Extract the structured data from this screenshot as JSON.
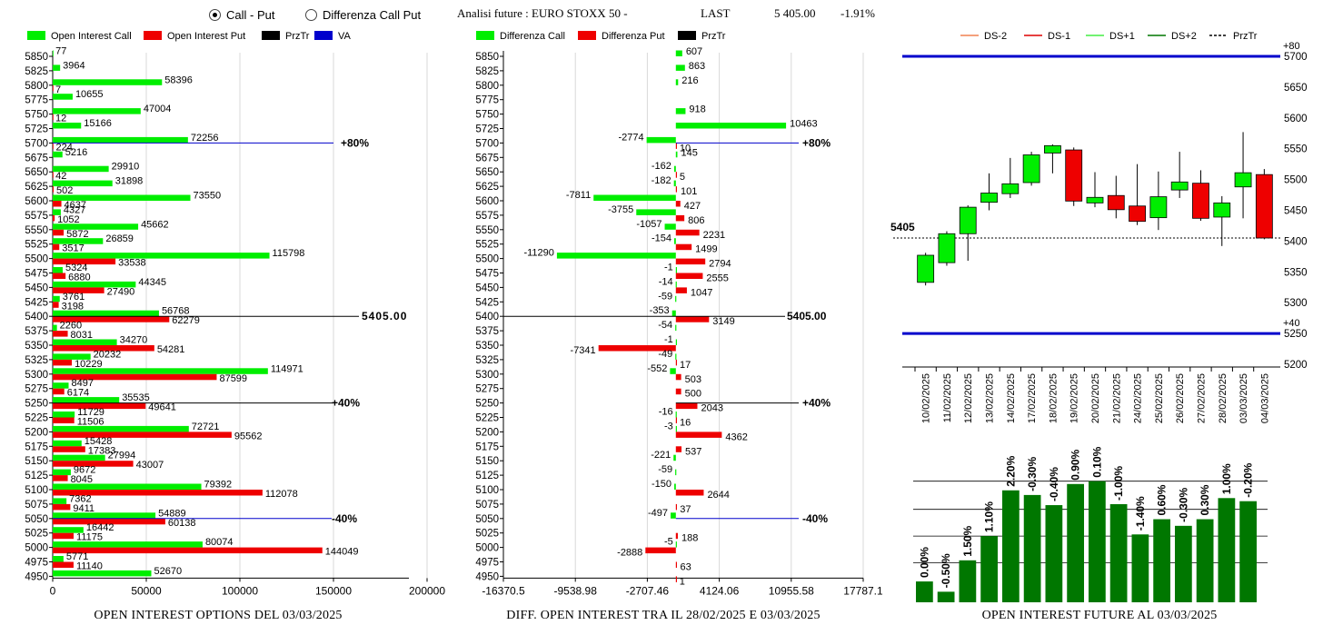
{
  "header": {
    "radio_call_put": "Call - Put",
    "radio_differenza": "Differenza Call Put",
    "selected": "call_put",
    "analysis_label": "Analisi future : EURO STOXX 50 -",
    "last_label": "LAST",
    "last_value": "5 405.00",
    "last_change": "-1.91%"
  },
  "colors": {
    "green": "#00ee00",
    "red": "#ee0000",
    "black": "#000000",
    "blue": "#0000cc",
    "darkgreen": "#007700"
  },
  "left_panel": {
    "legend": [
      {
        "label": "Open Interest Call",
        "color": "#00ee00"
      },
      {
        "label": "Open Interest Put",
        "color": "#ee0000"
      },
      {
        "label": "PrzTr",
        "color": "#000000"
      },
      {
        "label": "VA",
        "color": "#0000cc"
      }
    ],
    "footer": "OPEN INTEREST OPTIONS DEL 03/03/2025"
  },
  "mid_panel": {
    "legend": [
      {
        "label": "Differenza Call",
        "color": "#00ee00"
      },
      {
        "label": "Differenza Put",
        "color": "#ee0000"
      },
      {
        "label": "PrzTr",
        "color": "#000000"
      }
    ],
    "footer": "DIFF. OPEN INTEREST TRA IL 28/02/2025 E 03/03/2025"
  },
  "right_panel": {
    "legend": [
      {
        "label": "DS-2",
        "color": "#f08050",
        "dash": false
      },
      {
        "label": "DS-1",
        "color": "#dd0000",
        "dash": false
      },
      {
        "label": "DS+1",
        "color": "#44ee44",
        "dash": false
      },
      {
        "label": "DS+2",
        "color": "#007700",
        "dash": false
      },
      {
        "label": "PrzTr",
        "color": "#000000",
        "dash": true
      }
    ],
    "footer": "OPEN INTEREST FUTURE AL 03/03/2025"
  },
  "chart_data": [
    {
      "id": "oi_options",
      "type": "bar",
      "orientation": "horizontal",
      "strikes": [
        5850,
        5825,
        5800,
        5775,
        5750,
        5725,
        5700,
        5675,
        5650,
        5625,
        5600,
        5575,
        5550,
        5525,
        5500,
        5475,
        5450,
        5425,
        5400,
        5375,
        5350,
        5325,
        5300,
        5275,
        5250,
        5225,
        5200,
        5175,
        5150,
        5125,
        5100,
        5075,
        5050,
        5025,
        5000,
        4975,
        4950
      ],
      "series": [
        {
          "name": "Open Interest Call",
          "color": "#00ee00",
          "values": [
            77,
            3964,
            58396,
            10655,
            47004,
            15166,
            72256,
            5216,
            29910,
            31898,
            73550,
            4327,
            45662,
            26859,
            115798,
            5324,
            44345,
            3761,
            56768,
            2260,
            34270,
            20232,
            114971,
            8497,
            35535,
            11729,
            72721,
            15428,
            27994,
            9672,
            79392,
            7362,
            54889,
            16442,
            80074,
            5771,
            52670
          ]
        },
        {
          "name": "Open Interest Put",
          "color": "#ee0000",
          "values": [
            null,
            null,
            7,
            null,
            12,
            null,
            224,
            null,
            42,
            502,
            4637,
            1052,
            5872,
            3517,
            33538,
            6880,
            27490,
            3198,
            62279,
            8031,
            54281,
            10229,
            87599,
            6174,
            49641,
            11506,
            95562,
            17383,
            43007,
            8045,
            112078,
            9411,
            60138,
            11175,
            144049,
            11140,
            null
          ]
        }
      ],
      "xlim": [
        0,
        200000
      ],
      "xticks": [
        0,
        50000,
        100000,
        150000,
        200000
      ],
      "xticklabels": [
        "0",
        "50000",
        "100000",
        "150000",
        "200000"
      ],
      "reference_lines": [
        {
          "strike": 5700,
          "label": "+80%",
          "color": "#0000cc"
        },
        {
          "strike": 5400,
          "label": "5405.00",
          "color": "#000000"
        },
        {
          "strike": 5250,
          "label": "+40%",
          "color": "#000000"
        },
        {
          "strike": 5050,
          "label": "-40%",
          "color": "#0000cc"
        }
      ]
    },
    {
      "id": "oi_diff",
      "type": "bar",
      "orientation": "horizontal",
      "strikes": [
        5850,
        5825,
        5800,
        5775,
        5750,
        5725,
        5700,
        5675,
        5650,
        5625,
        5600,
        5575,
        5550,
        5525,
        5500,
        5475,
        5450,
        5425,
        5400,
        5375,
        5350,
        5325,
        5300,
        5275,
        5250,
        5225,
        5200,
        5175,
        5150,
        5125,
        5100,
        5075,
        5050,
        5025,
        5000,
        4975,
        4950
      ],
      "series": [
        {
          "name": "Differenza Call",
          "color": "#00ee00",
          "values": [
            607,
            863,
            216,
            null,
            918,
            10463,
            -2774,
            145,
            -162,
            -182,
            -7811,
            -3755,
            -1057,
            -154,
            -11290,
            -1,
            -14,
            -59,
            -353,
            -54,
            -1,
            -49,
            -552,
            null,
            null,
            -16,
            -3,
            null,
            -221,
            -59,
            -150,
            null,
            -497,
            null,
            -5,
            null,
            null
          ]
        },
        {
          "name": "Differenza Put",
          "color": "#ee0000",
          "values": [
            null,
            null,
            null,
            null,
            null,
            null,
            10,
            null,
            5,
            101,
            427,
            806,
            2231,
            1499,
            2794,
            2555,
            1047,
            null,
            3149,
            null,
            -7341,
            17,
            503,
            500,
            2043,
            16,
            4362,
            537,
            null,
            null,
            2644,
            37,
            null,
            188,
            -2888,
            63,
            1
          ]
        }
      ],
      "xlim": [
        -16370.5,
        17787.1
      ],
      "xticks": [
        -16370.5,
        -9538.98,
        -2707.46,
        4124.06,
        10955.58,
        17787.1
      ],
      "xticklabels": [
        "-16370.5",
        "-9538.98",
        "-2707.46",
        "4124.06",
        "10955.58",
        "17787.1"
      ],
      "reference_lines": [
        {
          "strike": 5700,
          "label": "+80%",
          "color": "#0000cc"
        },
        {
          "strike": 5400,
          "label": "5405.00",
          "color": "#000000"
        },
        {
          "strike": 5250,
          "label": "+40%",
          "color": "#000000"
        },
        {
          "strike": 5050,
          "label": "-40%",
          "color": "#0000cc"
        }
      ]
    },
    {
      "id": "candles",
      "type": "candlestick",
      "dates": [
        "10/02/2025",
        "11/02/2025",
        "12/02/2025",
        "13/02/2025",
        "14/02/2025",
        "17/02/2025",
        "18/02/2025",
        "19/02/2025",
        "20/02/2025",
        "21/02/2025",
        "24/02/2025",
        "25/02/2025",
        "26/02/2025",
        "27/02/2025",
        "28/02/2025",
        "03/03/2025",
        "04/03/2025"
      ],
      "ohlc": [
        [
          5333,
          5381,
          5328,
          5377
        ],
        [
          5365,
          5416,
          5360,
          5412
        ],
        [
          5412,
          5458,
          5368,
          5455
        ],
        [
          5463,
          5510,
          5450,
          5478
        ],
        [
          5477,
          5535,
          5470,
          5493
        ],
        [
          5495,
          5545,
          5490,
          5540
        ],
        [
          5543,
          5557,
          5510,
          5555
        ],
        [
          5548,
          5552,
          5457,
          5465
        ],
        [
          5462,
          5512,
          5455,
          5471
        ],
        [
          5474,
          5506,
          5437,
          5451
        ],
        [
          5457,
          5525,
          5426,
          5432
        ],
        [
          5438,
          5513,
          5418,
          5472
        ],
        [
          5483,
          5545,
          5470,
          5496
        ],
        [
          5494,
          5515,
          5433,
          5437
        ],
        [
          5439,
          5473,
          5392,
          5462
        ],
        [
          5488,
          5577,
          5437,
          5511
        ],
        [
          5508,
          5517,
          5403,
          5405
        ]
      ],
      "ylim": [
        5200,
        5700
      ],
      "yticks": [
        5200,
        5250,
        5300,
        5350,
        5400,
        5450,
        5500,
        5550,
        5600,
        5650,
        5700
      ],
      "hlines": [
        {
          "value": 5700,
          "label": "+80",
          "color": "#0000cc"
        },
        {
          "value": 5250,
          "label": "+40",
          "color": "#0000cc"
        },
        {
          "value": 5405,
          "label": "5405",
          "color": "#000000",
          "dashed": true
        }
      ]
    },
    {
      "id": "future_oi",
      "type": "bar",
      "values": [
        0.0,
        -0.5,
        1.5,
        1.1,
        2.2,
        -0.3,
        -0.4,
        0.9,
        0.1,
        -1.0,
        -1.4,
        0.6,
        -0.3,
        0.3,
        1.0,
        -0.2
      ],
      "labels": [
        "0.00%",
        "-0.50%",
        "1.50%",
        "1.10%",
        "2.20%",
        "-0.30%",
        "-0.40%",
        "0.90%",
        "0.10%",
        "-1.00%",
        "-1.40%",
        "0.60%",
        "-0.30%",
        "0.30%",
        "1.00%",
        "-0.20%"
      ],
      "heights": [
        0.148,
        0.075,
        0.298,
        0.47,
        0.795,
        0.762,
        0.69,
        0.84,
        0.86,
        0.697,
        0.482,
        0.59,
        0.543,
        0.59,
        0.74,
        0.718
      ],
      "color": "#007700"
    }
  ]
}
